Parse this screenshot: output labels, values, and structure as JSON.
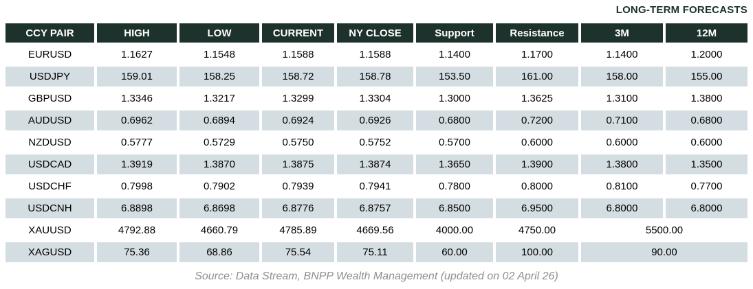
{
  "title": "LONG-TERM FORECASTS",
  "source": "Source: Data Stream, BNPP Wealth Management (updated on 02 April 26)",
  "colors": {
    "header_bg": "#1d322c",
    "header_text": "#ffffff",
    "alt_row_bg": "#d3dde2",
    "title_text": "#1d322c",
    "source_text": "#8f8f8f",
    "cell_text": "#000000"
  },
  "chart_data": {
    "type": "table",
    "title": "LONG-TERM FORECASTS",
    "columns": [
      "CCY PAIR",
      "HIGH",
      "LOW",
      "CURRENT",
      "NY CLOSE",
      "Support",
      "Resistance",
      "3M",
      "12M"
    ],
    "rows": [
      {
        "cells": [
          "EURUSD",
          "1.1627",
          "1.1548",
          "1.1588",
          "1.1588",
          "1.1400",
          "1.1700",
          "1.1400",
          "1.2000"
        ]
      },
      {
        "cells": [
          "USDJPY",
          "159.01",
          "158.25",
          "158.72",
          "158.78",
          "153.50",
          "161.00",
          "158.00",
          "155.00"
        ]
      },
      {
        "cells": [
          "GBPUSD",
          "1.3346",
          "1.3217",
          "1.3299",
          "1.3304",
          "1.3000",
          "1.3625",
          "1.3100",
          "1.3800"
        ]
      },
      {
        "cells": [
          "AUDUSD",
          "0.6962",
          "0.6894",
          "0.6924",
          "0.6926",
          "0.6800",
          "0.7200",
          "0.7100",
          "0.6800"
        ]
      },
      {
        "cells": [
          "NZDUSD",
          "0.5777",
          "0.5729",
          "0.5750",
          "0.5752",
          "0.5700",
          "0.6000",
          "0.6000",
          "0.6000"
        ]
      },
      {
        "cells": [
          "USDCAD",
          "1.3919",
          "1.3870",
          "1.3875",
          "1.3874",
          "1.3650",
          "1.3900",
          "1.3800",
          "1.3500"
        ]
      },
      {
        "cells": [
          "USDCHF",
          "0.7998",
          "0.7902",
          "0.7939",
          "0.7941",
          "0.7800",
          "0.8000",
          "0.8100",
          "0.7700"
        ]
      },
      {
        "cells": [
          "USDCNH",
          "6.8898",
          "6.8698",
          "6.8776",
          "6.8757",
          "6.8500",
          "6.9500",
          "6.8000",
          "6.8000"
        ]
      },
      {
        "cells": [
          "XAUUSD",
          "4792.88",
          "4660.79",
          "4785.89",
          "4669.56",
          "4000.00",
          "4750.00"
        ],
        "merged_3m_12m": "5500.00"
      },
      {
        "cells": [
          "XAGUSD",
          "75.36",
          "68.86",
          "75.54",
          "75.11",
          "60.00",
          "100.00"
        ],
        "merged_3m_12m": "90.00"
      }
    ],
    "source": "Source: Data Stream, BNPP Wealth Management (updated on 02 April 26)"
  }
}
